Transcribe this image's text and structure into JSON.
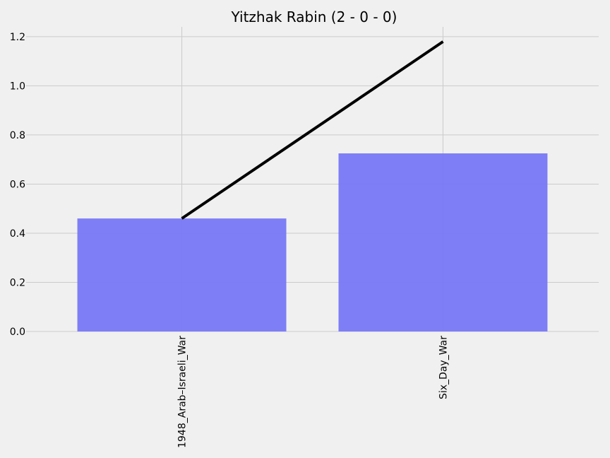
{
  "chart_data": {
    "type": "bar",
    "title": "Yitzhak Rabin (2 - 0 - 0)",
    "xlabel": "",
    "ylabel": "",
    "categories": [
      "1948_Arab–Israeli_War",
      "Six_Day_War"
    ],
    "series": [
      {
        "kind": "bar",
        "values": [
          0.46,
          0.725
        ],
        "color": "#7777f6"
      },
      {
        "kind": "line",
        "values": [
          0.46,
          1.18
        ],
        "color": "#000000"
      }
    ],
    "ylim": [
      0,
      1.24
    ],
    "yticks": [
      "0.0",
      "0.2",
      "0.4",
      "0.6",
      "0.8",
      "1.0",
      "1.2"
    ],
    "grid": true,
    "colors": {
      "background": "#f0f0f0",
      "grid": "#cbcbcb"
    }
  }
}
